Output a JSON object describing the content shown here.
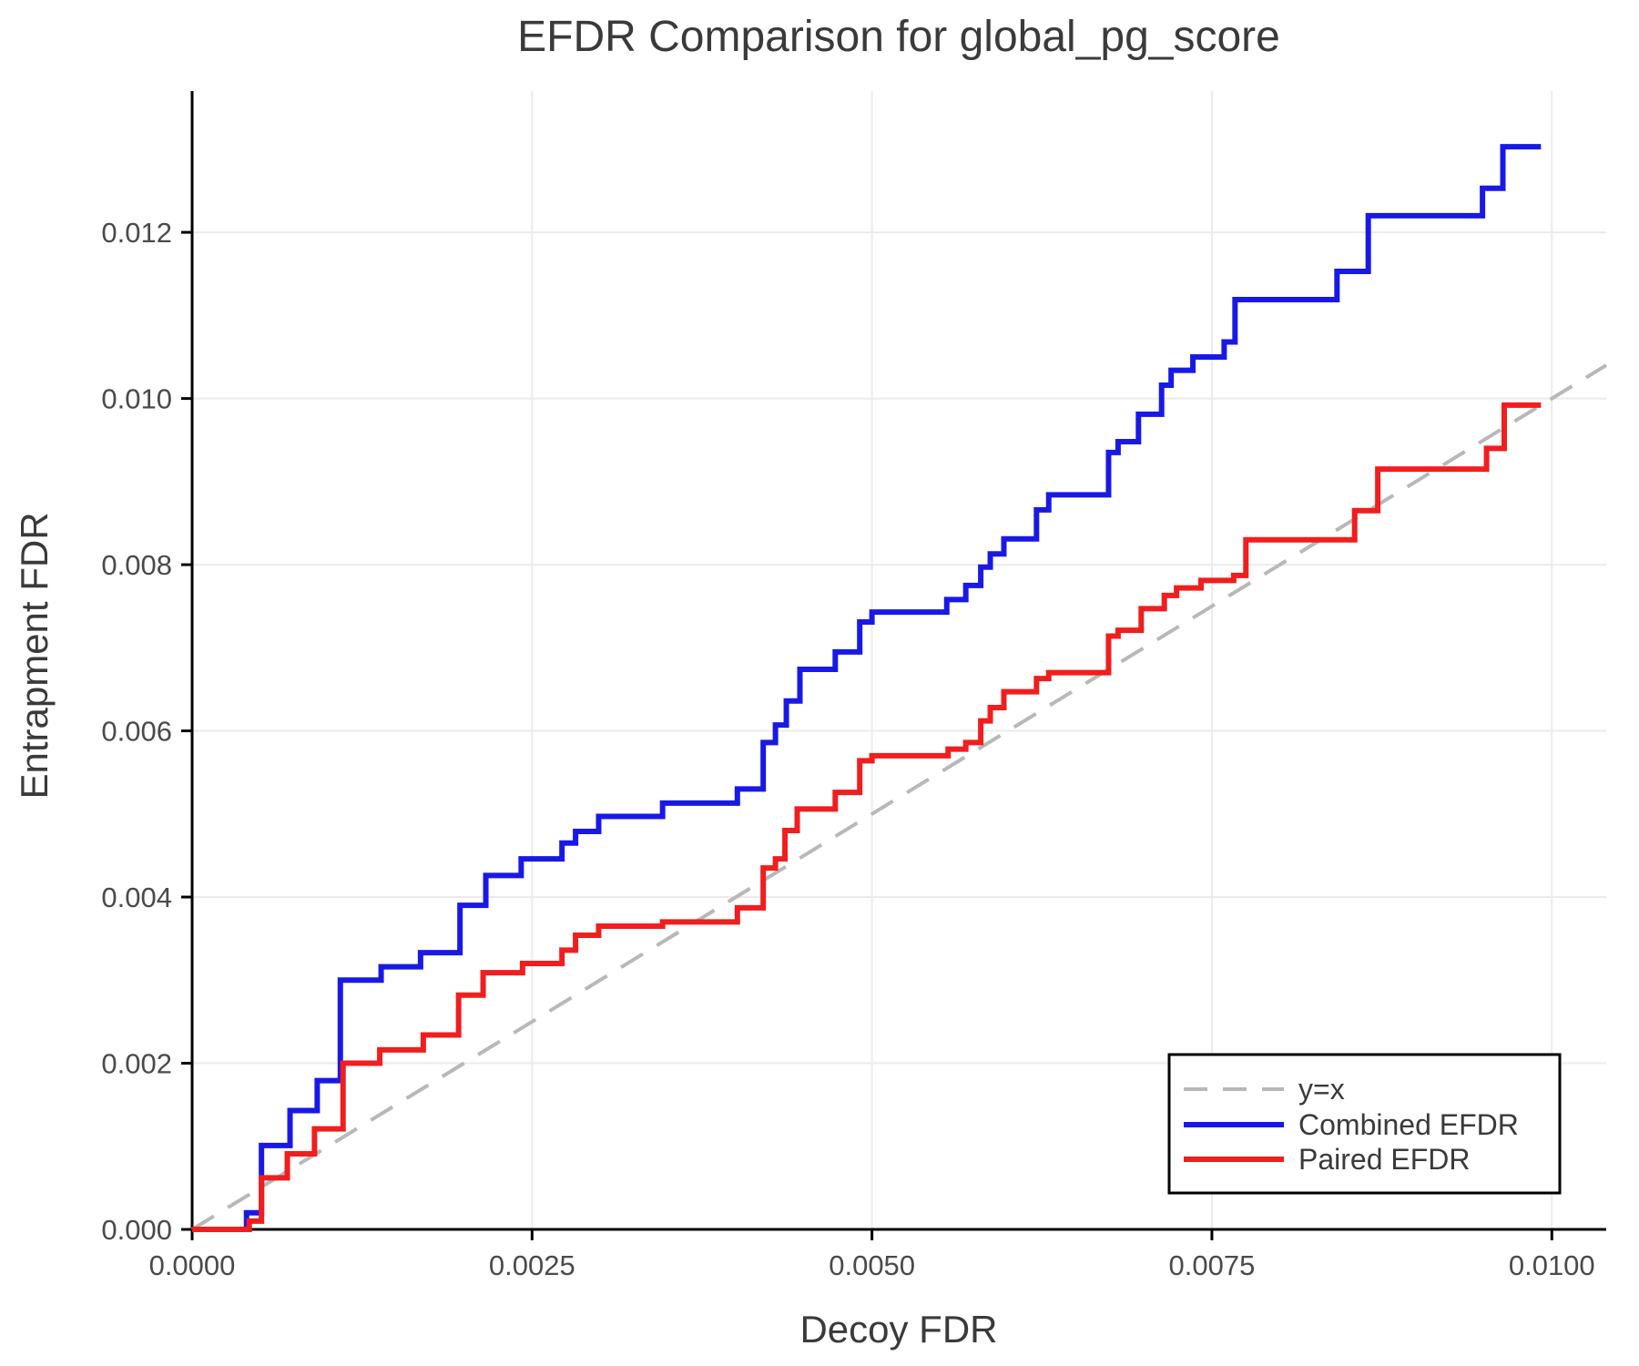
{
  "chart_data": {
    "type": "line",
    "subtype": "step-post",
    "title": "EFDR Comparison for global_pg_score",
    "xlabel": "Decoy FDR",
    "ylabel": "Entrapment FDR",
    "xlim": [
      0,
      0.0104
    ],
    "ylim": [
      0,
      0.0137
    ],
    "grid": true,
    "legend_position": "lower right",
    "xticks": {
      "values": [
        0.0,
        0.0025,
        0.005,
        0.0075,
        0.01
      ],
      "labels": [
        "0.0000",
        "0.0025",
        "0.0050",
        "0.0075",
        "0.0100"
      ]
    },
    "yticks": {
      "values": [
        0.0,
        0.002,
        0.004,
        0.006,
        0.008,
        0.01,
        0.012
      ],
      "labels": [
        "0.000",
        "0.002",
        "0.004",
        "0.006",
        "0.008",
        "0.010",
        "0.012"
      ]
    },
    "series": [
      {
        "name": "y=x",
        "kind": "diagonal",
        "color": "#b8b8b8",
        "dashed": true,
        "stroke_width": 4,
        "points": [
          [
            0,
            0
          ],
          [
            0.0104,
            0.0104
          ]
        ]
      },
      {
        "name": "Combined EFDR",
        "kind": "step",
        "color": "#1919e6",
        "dashed": false,
        "stroke_width": 6,
        "x_start": 0.0,
        "y_start": 0.0,
        "x_end": 0.00992,
        "steps": [
          [
            0.0004,
            0.0002
          ],
          [
            0.00051,
            0.00101
          ],
          [
            0.00072,
            0.00143
          ],
          [
            0.00092,
            0.00179
          ],
          [
            0.00109,
            0.003
          ],
          [
            0.00139,
            0.00316
          ],
          [
            0.00168,
            0.00333
          ],
          [
            0.00197,
            0.0039
          ],
          [
            0.00216,
            0.00426
          ],
          [
            0.00242,
            0.00446
          ],
          [
            0.00272,
            0.00465
          ],
          [
            0.00282,
            0.00479
          ],
          [
            0.00299,
            0.00497
          ],
          [
            0.00346,
            0.00513
          ],
          [
            0.00401,
            0.0053
          ],
          [
            0.0042,
            0.00586
          ],
          [
            0.00429,
            0.00607
          ],
          [
            0.00437,
            0.00636
          ],
          [
            0.00447,
            0.00674
          ],
          [
            0.00473,
            0.00695
          ],
          [
            0.00491,
            0.00731
          ],
          [
            0.005,
            0.00743
          ],
          [
            0.00555,
            0.00758
          ],
          [
            0.00569,
            0.00775
          ],
          [
            0.0058,
            0.00797
          ],
          [
            0.00587,
            0.00813
          ],
          [
            0.00597,
            0.00831
          ],
          [
            0.00621,
            0.00866
          ],
          [
            0.0063,
            0.00884
          ],
          [
            0.00674,
            0.00935
          ],
          [
            0.00681,
            0.00948
          ],
          [
            0.00696,
            0.00981
          ],
          [
            0.00713,
            0.01016
          ],
          [
            0.0072,
            0.01034
          ],
          [
            0.00736,
            0.0105
          ],
          [
            0.00759,
            0.01068
          ],
          [
            0.00767,
            0.01119
          ],
          [
            0.00842,
            0.01153
          ],
          [
            0.00865,
            0.0122
          ],
          [
            0.00949,
            0.01253
          ],
          [
            0.00964,
            0.01303
          ]
        ]
      },
      {
        "name": "Paired EFDR",
        "kind": "step",
        "color": "#f01e1e",
        "dashed": false,
        "stroke_width": 6,
        "x_start": 0.0,
        "y_start": 0.0,
        "x_end": 0.00992,
        "steps": [
          [
            0.00042,
            0.0001
          ],
          [
            0.00051,
            0.00062
          ],
          [
            0.0007,
            0.00091
          ],
          [
            0.0009,
            0.00121
          ],
          [
            0.00111,
            0.002
          ],
          [
            0.00138,
            0.00216
          ],
          [
            0.0017,
            0.00234
          ],
          [
            0.00196,
            0.00282
          ],
          [
            0.00214,
            0.00309
          ],
          [
            0.00243,
            0.0032
          ],
          [
            0.00272,
            0.00336
          ],
          [
            0.00282,
            0.00354
          ],
          [
            0.00299,
            0.00365
          ],
          [
            0.00346,
            0.0037
          ],
          [
            0.00401,
            0.00387
          ],
          [
            0.0042,
            0.00435
          ],
          [
            0.00429,
            0.00446
          ],
          [
            0.00436,
            0.0048
          ],
          [
            0.00445,
            0.00506
          ],
          [
            0.00473,
            0.00526
          ],
          [
            0.00491,
            0.00564
          ],
          [
            0.005,
            0.0057
          ],
          [
            0.00556,
            0.00578
          ],
          [
            0.00569,
            0.00586
          ],
          [
            0.0058,
            0.00612
          ],
          [
            0.00587,
            0.00628
          ],
          [
            0.00597,
            0.00647
          ],
          [
            0.00621,
            0.00663
          ],
          [
            0.0063,
            0.0067
          ],
          [
            0.00674,
            0.00714
          ],
          [
            0.00681,
            0.00721
          ],
          [
            0.00698,
            0.00747
          ],
          [
            0.00715,
            0.00763
          ],
          [
            0.00724,
            0.00772
          ],
          [
            0.00742,
            0.00781
          ],
          [
            0.00766,
            0.00787
          ],
          [
            0.00775,
            0.0083
          ],
          [
            0.00855,
            0.00865
          ],
          [
            0.00872,
            0.00915
          ],
          [
            0.00952,
            0.0094
          ],
          [
            0.00965,
            0.00992
          ]
        ]
      }
    ]
  },
  "colors": {
    "background": "#ffffff",
    "grid": "#ebebeb",
    "spine": "#000000",
    "title_text": "#3a3a3a",
    "tick_text": "#4a4a4a",
    "combined_line": "#1919e6",
    "paired_line": "#f01e1e",
    "identity_line": "#b8b8b8"
  }
}
